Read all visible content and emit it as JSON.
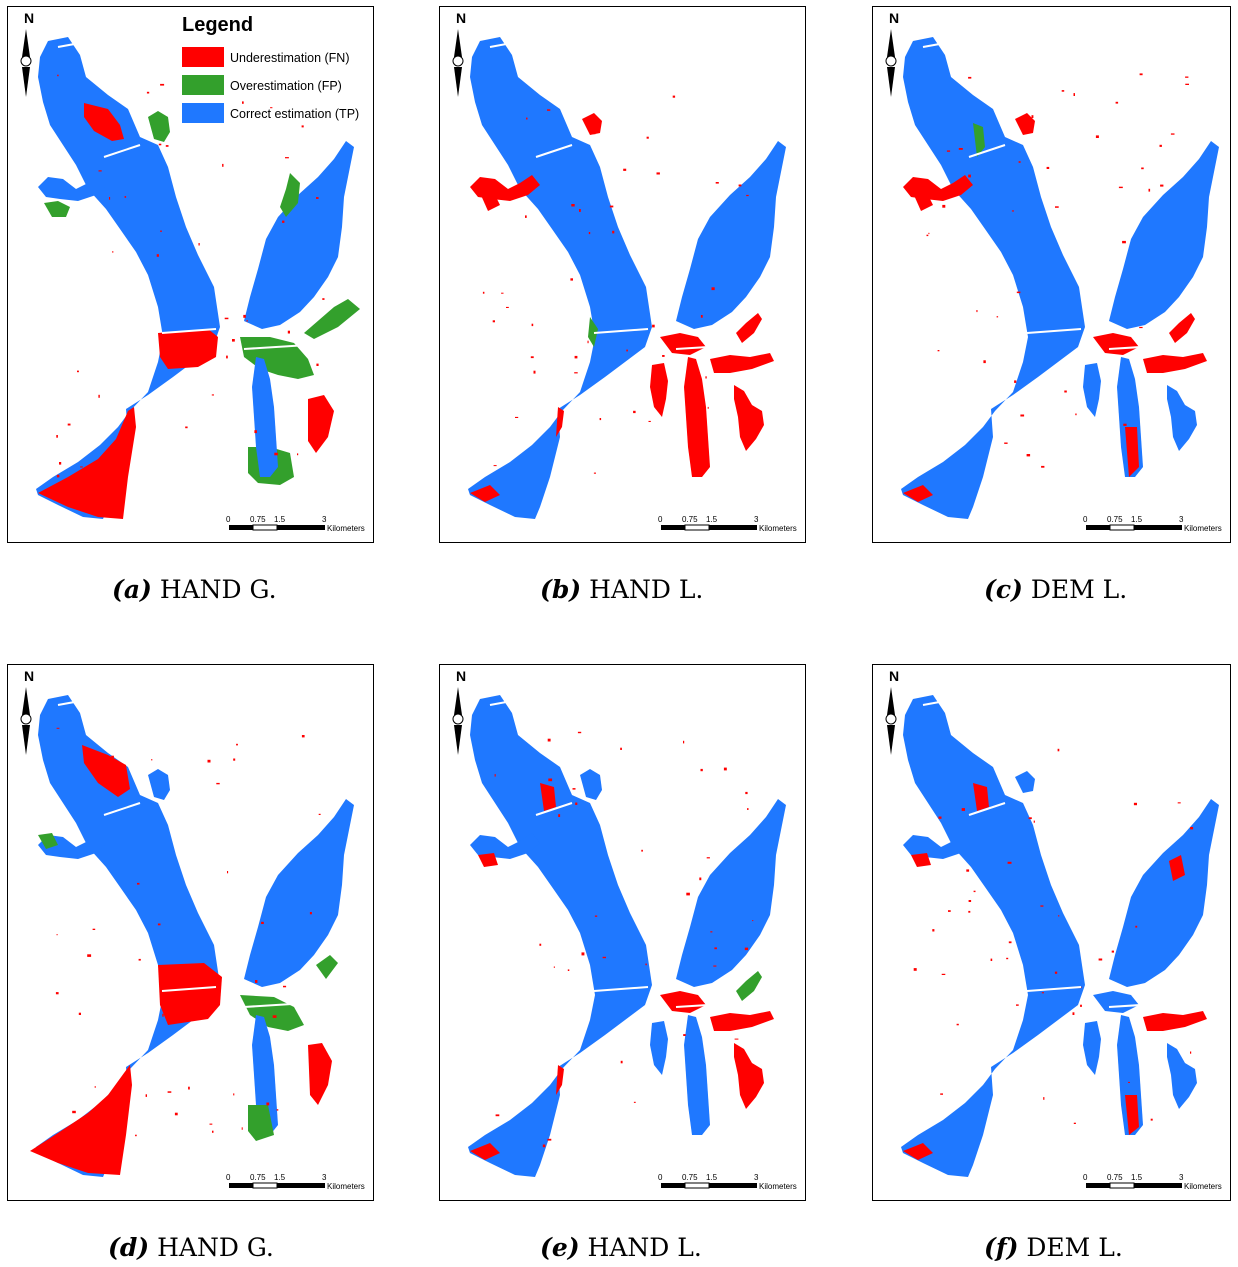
{
  "legend": {
    "title": "Legend",
    "items": [
      {
        "label": "Underestimation (FN)",
        "color": "#ff0000"
      },
      {
        "label": "Overestimation (FP)",
        "color": "#33a02c"
      },
      {
        "label": "Correct estimation (TP)",
        "color": "#1f78ff"
      }
    ]
  },
  "colors": {
    "fn": "#ff0000",
    "fp": "#33a02c",
    "tp": "#1f78ff"
  },
  "north_arrow_icon": "north-arrow-icon",
  "scale_bar": {
    "ticks": [
      "0",
      "0.75",
      "1.5",
      "3"
    ],
    "unit": "Kilometers"
  },
  "panels": [
    {
      "label": "(a)",
      "name": "HAND G."
    },
    {
      "label": "(b)",
      "name": "HAND L."
    },
    {
      "label": "(c)",
      "name": "DEM L."
    },
    {
      "label": "(d)",
      "name": "HAND G."
    },
    {
      "label": "(e)",
      "name": "HAND L."
    },
    {
      "label": "(f)",
      "name": "DEM L."
    }
  ]
}
